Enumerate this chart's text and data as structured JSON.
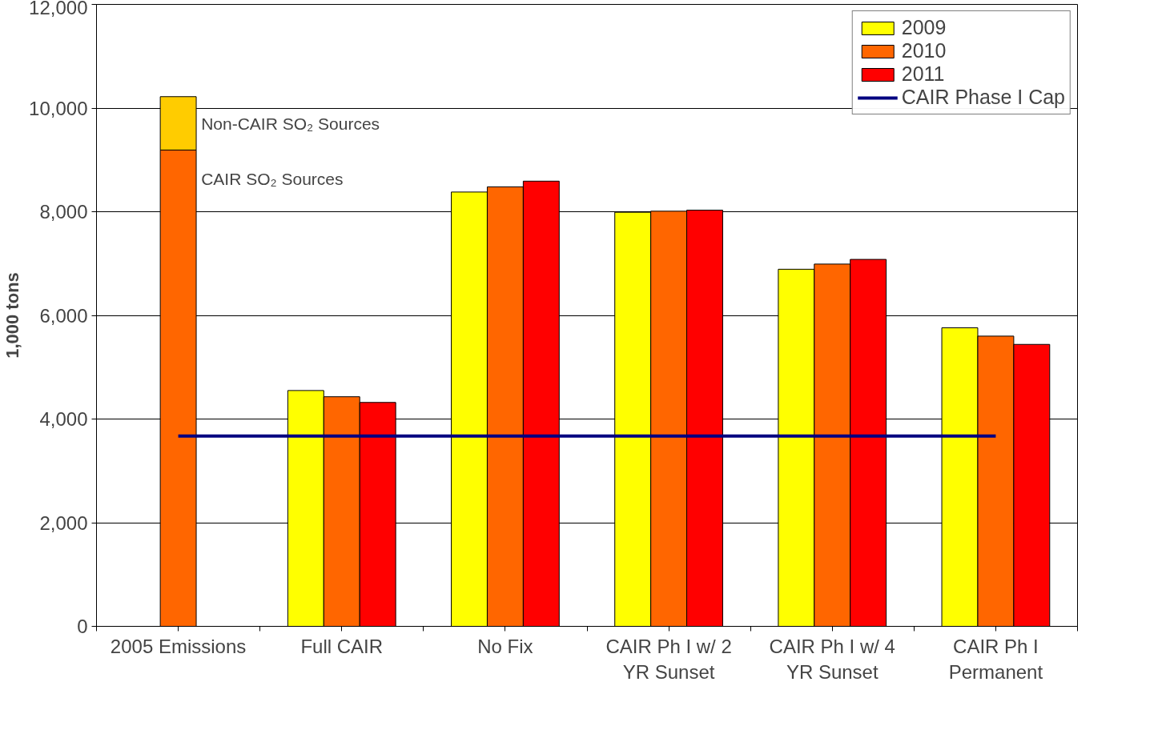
{
  "chart_data": {
    "type": "bar",
    "ylabel": "1,000 tons",
    "categories": [
      "2005 Emissions",
      "Full CAIR",
      "No Fix",
      "CAIR Ph I w/ 2 YR Sunset",
      "CAIR Ph I w/ 4 YR Sunset",
      "CAIR Ph I Permanent"
    ],
    "series": [
      {
        "name": "2009",
        "color": "#ffff00",
        "values": [
          null,
          4550,
          8380,
          7990,
          6890,
          5760
        ]
      },
      {
        "name": "2010",
        "color": "#ff6600",
        "values": [
          9190,
          4430,
          8480,
          8010,
          6990,
          5600
        ]
      },
      {
        "name": "2011",
        "color": "#ff0000",
        "values": [
          null,
          4320,
          8590,
          8030,
          7080,
          5440
        ]
      },
      {
        "color": "#ffcc00",
        "values": [
          1030,
          null,
          null,
          null,
          null,
          null
        ],
        "base": [
          9190,
          null,
          null,
          null,
          null,
          null
        ]
      },
      {
        "name": "CAIR Phase I Cap",
        "type": "line",
        "color": "#000080",
        "values": [
          3670,
          3670,
          3670,
          3670,
          3670,
          3670
        ]
      }
    ],
    "ylim": [
      0,
      12000
    ],
    "yticks": [
      0,
      {
        "value": 2000,
        "label": "2,000"
      },
      {
        "value": 4000,
        "label": "4,000"
      },
      {
        "value": 6000,
        "label": "6,000"
      },
      {
        "value": 8000,
        "label": "8,000"
      },
      {
        "value": 10000,
        "label": "10,000"
      },
      {
        "value": 12000,
        "label": "12,000"
      }
    ],
    "annotations": [
      "Non-CAIR SO₂ Sources",
      "CAIR SO₂ Sources"
    ],
    "grid": "y",
    "legend": "top right"
  }
}
